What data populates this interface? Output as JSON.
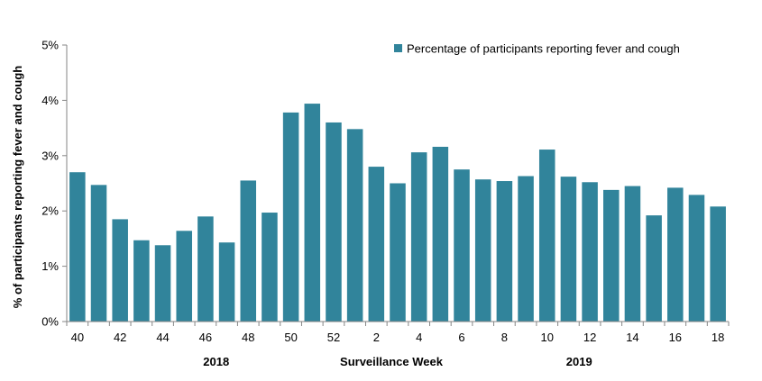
{
  "chart_data": {
    "type": "bar",
    "ylabel": "% of participants reporting fever and cough",
    "xlabel": "Surveillance Week",
    "year_labels": [
      {
        "label": "2018",
        "category": "46"
      },
      {
        "label": "2019",
        "category": "11"
      }
    ],
    "ylim": [
      0,
      5
    ],
    "y_ticks": [
      0,
      1,
      2,
      3,
      4,
      5
    ],
    "y_tick_labels": [
      "0%",
      "1%",
      "2%",
      "3%",
      "4%",
      "5%"
    ],
    "categories": [
      "40",
      "41",
      "42",
      "43",
      "44",
      "45",
      "46",
      "47",
      "48",
      "49",
      "50",
      "51",
      "52",
      "1",
      "2",
      "3",
      "4",
      "5",
      "6",
      "7",
      "8",
      "9",
      "10",
      "11",
      "12",
      "13",
      "14",
      "15",
      "16",
      "17",
      "18"
    ],
    "x_tick_labels": [
      "40",
      "",
      "42",
      "",
      "44",
      "",
      "46",
      "",
      "48",
      "",
      "50",
      "",
      "52",
      "",
      "2",
      "",
      "4",
      "",
      "6",
      "",
      "8",
      "",
      "10",
      "",
      "12",
      "",
      "14",
      "",
      "16",
      "",
      "18"
    ],
    "legend_position": "top-right",
    "grid": false,
    "series": [
      {
        "name": "Percentage of participants reporting fever and cough",
        "color": "#31849B",
        "values": [
          2.7,
          2.47,
          1.85,
          1.47,
          1.38,
          1.64,
          1.9,
          1.43,
          2.55,
          1.97,
          3.78,
          3.94,
          3.6,
          3.48,
          2.8,
          2.5,
          3.06,
          3.16,
          2.75,
          2.57,
          2.54,
          2.63,
          3.11,
          2.62,
          2.52,
          2.38,
          2.45,
          1.92,
          2.42,
          2.29,
          2.08
        ]
      }
    ]
  }
}
